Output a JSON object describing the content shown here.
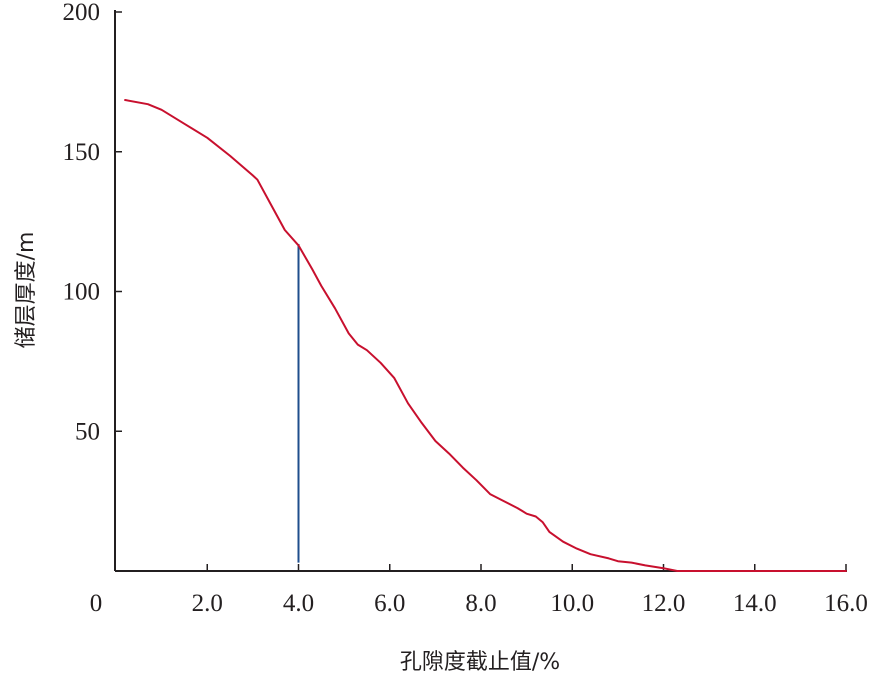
{
  "chart_data": {
    "type": "line",
    "xlabel": "孔隙度截止值/%",
    "ylabel": "储层厚度/m",
    "xlim": [
      0,
      16
    ],
    "ylim": [
      0,
      200
    ],
    "origin_label": "0",
    "x_ticks": [
      2,
      4,
      6,
      8,
      10,
      12,
      14,
      16
    ],
    "x_tick_labels": [
      "2.0",
      "4.0",
      "6.0",
      "8.0",
      "10.0",
      "12.0",
      "14.0",
      "16.0"
    ],
    "y_ticks": [
      50,
      100,
      150,
      200
    ],
    "y_tick_labels": [
      "50",
      "100",
      "150",
      "200"
    ],
    "grid": false,
    "series": [
      {
        "color": "#c8102e",
        "x": [
          0.2,
          0.7,
          1.0,
          1.5,
          2.0,
          2.5,
          3.0,
          3.1,
          3.4,
          3.7,
          4.0,
          4.3,
          4.5,
          4.8,
          5.1,
          5.3,
          5.5,
          5.8,
          6.1,
          6.4,
          6.7,
          7.0,
          7.3,
          7.6,
          7.9,
          8.2,
          8.5,
          8.8,
          8.9,
          9.0,
          9.2,
          9.35,
          9.5,
          9.8,
          10.1,
          10.4,
          10.8,
          11.0,
          11.3,
          11.6,
          12.0,
          12.3,
          12.5,
          13.0,
          14.0,
          15.0,
          16.0
        ],
        "y": [
          168.5,
          167,
          165,
          160,
          155,
          148.5,
          141.5,
          140,
          131,
          122,
          116.5,
          108,
          102,
          94,
          85,
          81,
          79,
          74.5,
          69,
          60,
          53,
          46.5,
          42,
          37,
          32.5,
          27.5,
          25,
          22.5,
          21.5,
          20.5,
          19.5,
          17.5,
          14,
          10.5,
          8,
          6,
          4.5,
          3.5,
          3,
          2,
          1,
          0,
          0,
          0,
          0,
          0,
          0
        ]
      }
    ],
    "marker_line": {
      "x": 4.0,
      "y_start": 3,
      "y_end": 117,
      "color": "#1f4e8c"
    }
  }
}
